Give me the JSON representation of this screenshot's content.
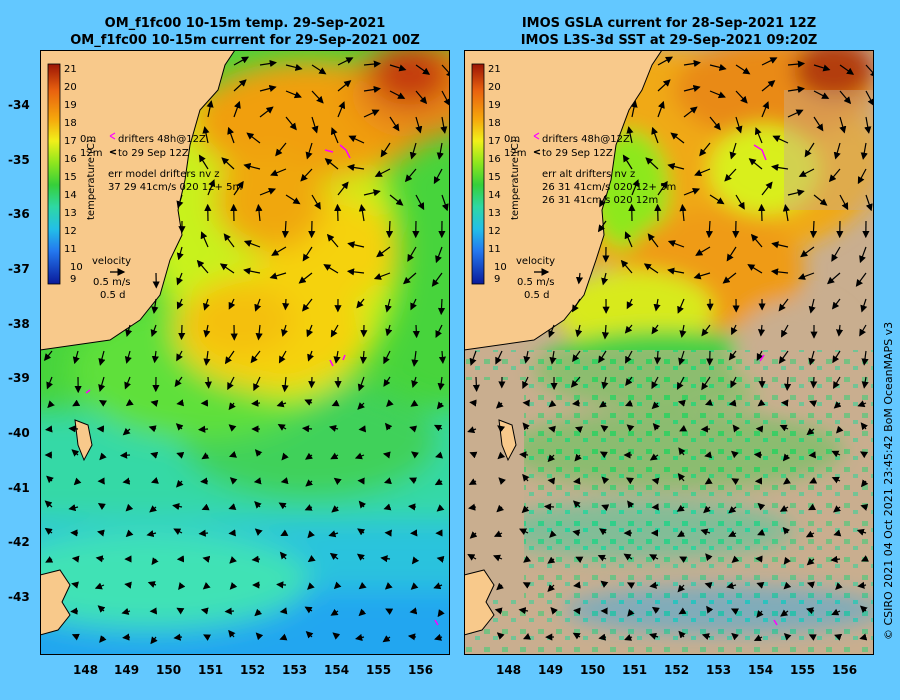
{
  "panels": [
    {
      "title_line1": "OM_f1fc00 10-15m temp. 29-Sep-2021",
      "title_line2": "OM_f1fc00 10-15m current for 29-Sep-2021 00Z",
      "drifters_line1": "drifters 48h@12Z",
      "drifters_line2": "to 29 Sep 12Z",
      "depth_top": "0m",
      "depth_bottom": "12m",
      "err_title": "err model drifters nv z",
      "err_lines": [
        "37 29 41cm/s 020 12+ 5m"
      ]
    },
    {
      "title_line1": "IMOS GSLA current for 28-Sep-2021 12Z",
      "title_line2": "IMOS L3S-3d SST at 29-Sep-2021 09:20Z",
      "drifters_line1": "drifters 48h@12Z",
      "drifters_line2": "to 29 Sep 12Z",
      "depth_top": "0m",
      "depth_bottom": "12m",
      "err_title": "err alt drifters nv z",
      "err_lines": [
        "26 31 41cm/s 020 12+ 5m",
        "26 31 41cm/s 020 12m"
      ]
    }
  ],
  "colorbar": {
    "label": "temperature (C)",
    "ticks": [
      "21",
      "20",
      "19",
      "18",
      "17",
      "16",
      "15",
      "14",
      "13",
      "12",
      "11",
      "10",
      "9"
    ]
  },
  "velocity_key": {
    "title": "velocity",
    "speed": "0.5 m/s",
    "duration": "0.5 d"
  },
  "lat_ticks": [
    "-34",
    "-35",
    "-36",
    "-37",
    "-38",
    "-39",
    "-40",
    "-41",
    "-42",
    "-43"
  ],
  "lon_ticks": [
    "148",
    "149",
    "150",
    "151",
    "152",
    "153",
    "154",
    "155",
    "156"
  ],
  "credit": "© CSIRO 2021  04 Oct 2021 23:45:42 BoM OceanMAPS v3",
  "colors": {
    "background": "#63c8ff",
    "land": "#f8c98b",
    "no_data": "#c9ae8f",
    "drifter": "#ff00ff"
  }
}
